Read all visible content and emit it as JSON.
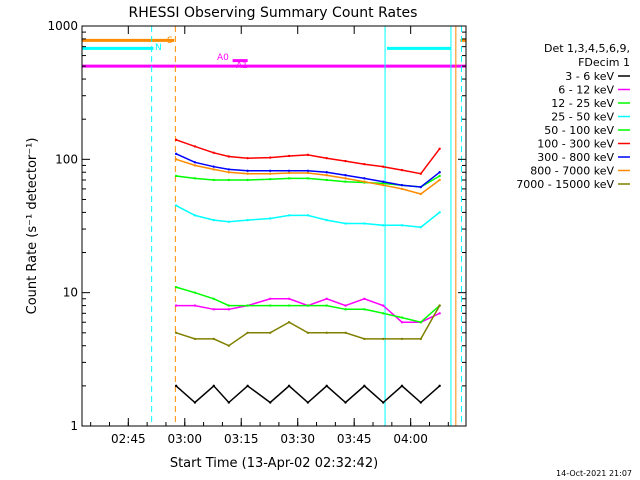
{
  "chart_data": {
    "type": "line",
    "title": "RHESSI Observing Summary Count Rates",
    "xlabel": "Start Time (13-Apr-02 02:32:42)",
    "ylabel": "Count Rate (s⁻¹ detector⁻¹)",
    "yscale": "log",
    "ylim": [
      1,
      1000
    ],
    "xlim": [
      0,
      102
    ],
    "x_unit": "minutes after 02:32:42",
    "x_ticks": [
      {
        "label": "02:45",
        "value": 12.3
      },
      {
        "label": "03:00",
        "value": 27.3
      },
      {
        "label": "03:15",
        "value": 42.3
      },
      {
        "label": "03:30",
        "value": 57.3
      },
      {
        "label": "03:45",
        "value": 72.3
      },
      {
        "label": "04:00",
        "value": 87.3
      }
    ],
    "y_ticks": [
      {
        "label": "1",
        "value": 1
      },
      {
        "label": "10",
        "value": 10
      },
      {
        "label": "100",
        "value": 100
      },
      {
        "label": "1000",
        "value": 1000
      }
    ],
    "legend_header": [
      "Det 1,3,4,5,6,9,",
      "FDecim 1"
    ],
    "legend_position": "right",
    "series": [
      {
        "name": "3 - 6 keV",
        "color": "#000000",
        "x": [
          25,
          30,
          35,
          39,
          44,
          50,
          55,
          60,
          65,
          70,
          75,
          80,
          85,
          90,
          95
        ],
        "y": [
          2,
          1.5,
          2,
          1.5,
          2,
          1.5,
          2,
          1.5,
          2,
          1.5,
          2,
          1.5,
          2,
          1.5,
          2
        ]
      },
      {
        "name": "6 - 12 keV",
        "color": "#ff00ff",
        "x": [
          25,
          30,
          35,
          39,
          44,
          50,
          55,
          60,
          65,
          70,
          75,
          80,
          85,
          90,
          95
        ],
        "y": [
          8,
          8,
          7.5,
          7.5,
          8,
          9,
          9,
          8,
          9,
          8,
          9,
          8,
          6,
          6,
          7
        ]
      },
      {
        "name": "12 - 25 keV",
        "color": "#00ff00",
        "x": [
          25,
          30,
          35,
          39,
          44,
          50,
          55,
          60,
          65,
          70,
          75,
          80,
          85,
          90,
          95
        ],
        "y": [
          11,
          10,
          9,
          8,
          8,
          8,
          8,
          8,
          8,
          7.5,
          7.5,
          7,
          6.5,
          6,
          8
        ]
      },
      {
        "name": "25 - 50 keV",
        "color": "#00ffff",
        "x": [
          25,
          30,
          35,
          39,
          44,
          50,
          55,
          60,
          65,
          70,
          75,
          80,
          85,
          90,
          95
        ],
        "y": [
          45,
          38,
          35,
          34,
          35,
          36,
          38,
          38,
          35,
          33,
          33,
          32,
          32,
          31,
          40
        ]
      },
      {
        "name": "50 - 100 keV",
        "color": "#00ff00",
        "x": [
          25,
          30,
          35,
          39,
          44,
          50,
          55,
          60,
          65,
          70,
          75,
          80,
          85,
          90,
          95
        ],
        "y": [
          75,
          72,
          70,
          70,
          70,
          71,
          72,
          72,
          70,
          68,
          67,
          66,
          64,
          62,
          75
        ]
      },
      {
        "name": "100 - 300 keV",
        "color": "#ff0000",
        "x": [
          25,
          30,
          35,
          39,
          44,
          50,
          55,
          60,
          65,
          70,
          75,
          80,
          85,
          90,
          95
        ],
        "y": [
          140,
          125,
          112,
          105,
          102,
          103,
          106,
          108,
          102,
          97,
          92,
          88,
          83,
          78,
          120
        ]
      },
      {
        "name": "300 - 800 keV",
        "color": "#0000ff",
        "x": [
          25,
          30,
          35,
          39,
          44,
          50,
          55,
          60,
          65,
          70,
          75,
          80,
          85,
          90,
          95
        ],
        "y": [
          110,
          95,
          88,
          84,
          82,
          82,
          82,
          82,
          80,
          76,
          72,
          68,
          64,
          62,
          80
        ]
      },
      {
        "name": "800 - 7000 keV",
        "color": "#ff8c00",
        "x": [
          25,
          30,
          35,
          39,
          44,
          50,
          55,
          60,
          65,
          70,
          75,
          80,
          85,
          90,
          95
        ],
        "y": [
          100,
          90,
          84,
          80,
          78,
          78,
          79,
          79,
          76,
          72,
          68,
          64,
          60,
          55,
          70
        ]
      },
      {
        "name": "7000 - 15000 keV",
        "color": "#808000",
        "x": [
          25,
          30,
          35,
          39,
          44,
          50,
          55,
          60,
          65,
          70,
          75,
          80,
          85,
          90,
          95
        ],
        "y": [
          5,
          4.5,
          4.5,
          4,
          5,
          5,
          6,
          5,
          5,
          5,
          4.5,
          4.5,
          4.5,
          4.5,
          8
        ]
      }
    ],
    "annotations": [
      {
        "label": "S",
        "color": "#ff8c00"
      },
      {
        "label": "N",
        "color": "#00ffff"
      },
      {
        "label": "A0",
        "color": "#ff00ff"
      },
      {
        "label": "A1",
        "color": "#ff00ff"
      }
    ],
    "state_bars": [
      {
        "label": "S",
        "color": "#ff8c00",
        "y": 780,
        "x": [
          0,
          24.5
        ]
      },
      {
        "label": "S",
        "color": "#ff8c00",
        "y": 780,
        "x": [
          100.5,
          102
        ]
      },
      {
        "label": "N",
        "color": "#00ffff",
        "y": 680,
        "x": [
          0,
          19
        ]
      },
      {
        "label": "N",
        "color": "#00ffff",
        "y": 680,
        "x": [
          81,
          98
        ]
      },
      {
        "label": "A1",
        "color": "#ff00ff",
        "y": 500,
        "x": [
          0,
          102
        ]
      },
      {
        "label": "A0",
        "color": "#ff00ff",
        "y": 550,
        "x": [
          40,
          44
        ]
      }
    ],
    "vlines": [
      {
        "x": 18.5,
        "color": "#00ffff",
        "style": "dashed"
      },
      {
        "x": 24.8,
        "color": "#ff8c00",
        "style": "dashed"
      },
      {
        "x": 80.5,
        "color": "#00ffff",
        "style": "solid"
      },
      {
        "x": 98.0,
        "color": "#00ffff",
        "style": "solid"
      },
      {
        "x": 99.3,
        "color": "#ff8c00",
        "style": "solid"
      },
      {
        "x": 100.8,
        "color": "#00ffff",
        "style": "dashed"
      }
    ]
  },
  "footer": {
    "date": "14-Oct-2021 21:07"
  }
}
